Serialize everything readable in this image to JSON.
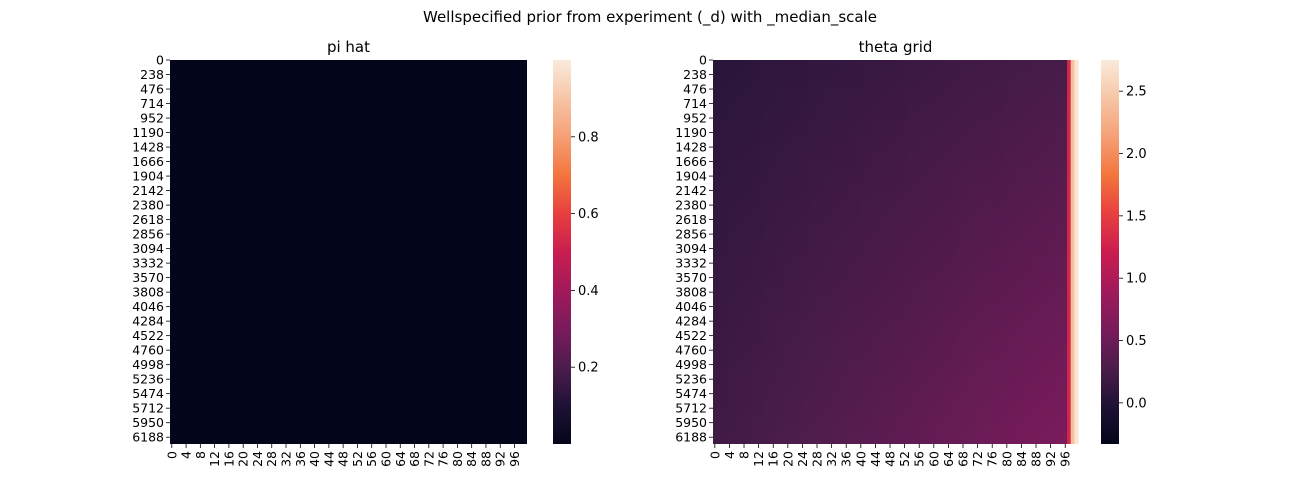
{
  "figure": {
    "suptitle": "Wellspecified prior from experiment (_d) with _median_scale"
  },
  "chart_data": [
    {
      "type": "heatmap",
      "title": "pi hat",
      "xlabel": "",
      "ylabel": "",
      "n_rows": 6300,
      "n_cols": 100,
      "yticks": [
        0,
        238,
        476,
        714,
        952,
        1190,
        1428,
        1666,
        1904,
        2142,
        2380,
        2618,
        2856,
        3094,
        3332,
        3570,
        3808,
        4046,
        4284,
        4522,
        4760,
        4998,
        5236,
        5474,
        5712,
        5950,
        6188
      ],
      "xticks": [
        0,
        4,
        8,
        12,
        16,
        20,
        24,
        28,
        32,
        36,
        40,
        44,
        48,
        52,
        56,
        60,
        64,
        68,
        72,
        76,
        80,
        84,
        88,
        92,
        96
      ],
      "value_range": [
        0.0,
        0.0005
      ],
      "colorbar": {
        "range": [
          0.0,
          1.0
        ],
        "ticks": [
          0.2,
          0.4,
          0.6,
          0.8
        ],
        "tick_labels": [
          "0.2",
          "0.4",
          "0.6",
          "0.8"
        ]
      },
      "colormap": "rocket"
    },
    {
      "type": "heatmap",
      "title": "theta grid",
      "xlabel": "",
      "ylabel": "",
      "n_rows": 6300,
      "n_cols": 100,
      "yticks": [
        0,
        238,
        476,
        714,
        952,
        1190,
        1428,
        1666,
        1904,
        2142,
        2380,
        2618,
        2856,
        3094,
        3332,
        3570,
        3808,
        4046,
        4284,
        4522,
        4760,
        4998,
        5236,
        5474,
        5712,
        5950,
        6188
      ],
      "xticks": [
        0,
        4,
        8,
        12,
        16,
        20,
        24,
        28,
        32,
        36,
        40,
        44,
        48,
        52,
        56,
        60,
        64,
        68,
        72,
        76,
        80,
        84,
        88,
        92,
        96
      ],
      "column_profile": {
        "approx_values_top": [
          0.05,
          0.1,
          0.15,
          0.2,
          0.25
        ],
        "approx_values_bottom": [
          0.2,
          0.3,
          0.4,
          0.5,
          0.6
        ],
        "last_columns": [
          {
            "col": 97,
            "value": 1.3
          },
          {
            "col": 98,
            "value": 2.4
          },
          {
            "col": 99,
            "value": 2.7
          }
        ]
      },
      "colorbar": {
        "range": [
          -0.33,
          2.75
        ],
        "ticks": [
          0.0,
          0.5,
          1.0,
          1.5,
          2.0,
          2.5
        ],
        "tick_labels": [
          "0.0",
          "0.5",
          "1.0",
          "1.5",
          "2.0",
          "2.5"
        ]
      },
      "colormap": "rocket"
    }
  ],
  "colormap_stops": [
    "#03051a",
    "#1f1235",
    "#4c1d4b",
    "#7a1b5b",
    "#a11a5b",
    "#ca1d4f",
    "#e83f3f",
    "#f3753d",
    "#f5a076",
    "#f6c5a6",
    "#faebdd"
  ]
}
